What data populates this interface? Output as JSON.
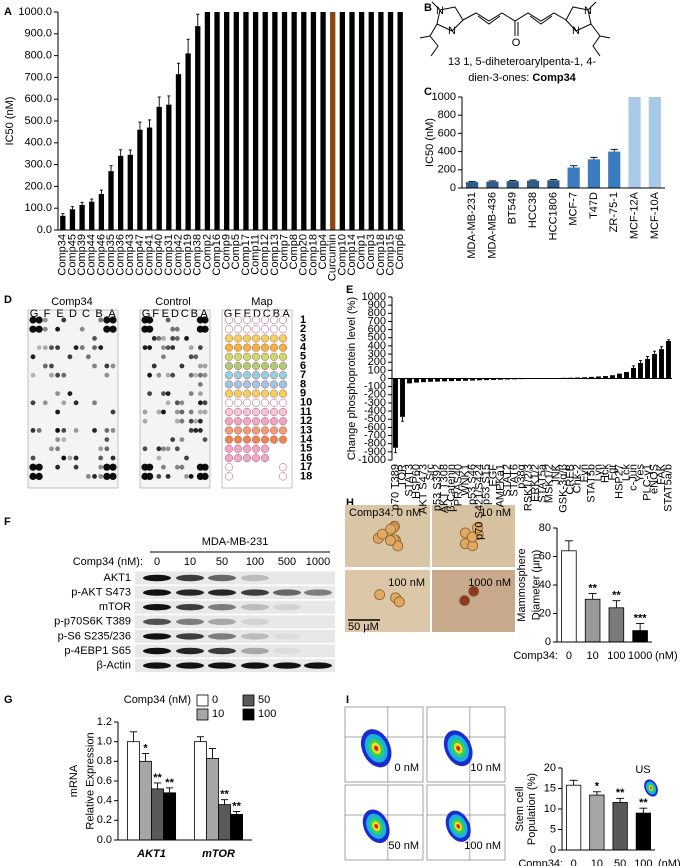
{
  "panel_labels": [
    "A",
    "B",
    "C",
    "D",
    "E",
    "F",
    "G",
    "H",
    "I"
  ],
  "structure": {
    "atoms": [
      "N",
      "N",
      "O",
      "N",
      "N"
    ],
    "caption": [
      "13 1, 5-diheteroarylpenta-1, 4-",
      "dien-3-ones: "
    ],
    "compound": "Comp34"
  },
  "array": {
    "titles": [
      "Comp34",
      "Control",
      "Map"
    ],
    "columns": [
      "G",
      "F",
      "E",
      "D",
      "C",
      "B",
      "A"
    ],
    "rows": [
      "1",
      "2",
      "3",
      "4",
      "5",
      "6",
      "7",
      "8",
      "9",
      "10",
      "11",
      "12",
      "13",
      "14",
      "15",
      "16",
      "17",
      "18"
    ]
  },
  "blot": {
    "cell_line": "MDA-MB-231",
    "dose_label": "Comp34 (nM):",
    "doses": [
      "0",
      "10",
      "50",
      "100",
      "500",
      "1000"
    ],
    "proteins": [
      "AKT1",
      "p-AKT S473",
      "mTOR",
      "p-p70S6K T389",
      "p-S6 S235/236",
      "p-4EBP1 S65",
      "β-Actin"
    ]
  },
  "micrographs": {
    "labels": [
      "Comp34: 0 nM",
      "10 nM",
      "100 nM",
      "1000 nM"
    ],
    "scale": "50 µM"
  },
  "flow": {
    "labels": [
      "0 nM",
      "10 nM",
      "50 nM",
      "100 nM"
    ]
  },
  "chart_data": [
    {
      "type": "bar",
      "ylabel": "IC50 (nM)",
      "categories": [
        "Comp34",
        "Comp45",
        "Comp39",
        "Comp44",
        "Comp46",
        "Comp35",
        "Comp36",
        "Comp43",
        "Comp47",
        "Comp41",
        "Comp40",
        "Comp31",
        "Comp42",
        "Comp19",
        "Comp38",
        "Comp2",
        "Comp16",
        "Comp9",
        "Comp5",
        "Comp17",
        "Comp11",
        "Comp12",
        "Comp13",
        "Comp7",
        "Comp8",
        "Comp20",
        "Comp18",
        "Comp4",
        "Curcumin",
        "Comp10",
        "Comp14",
        "Comp1",
        "Comp3",
        "Comp18",
        "Comp15",
        "Comp6"
      ],
      "values": [
        65,
        95,
        115,
        130,
        165,
        270,
        340,
        345,
        460,
        470,
        565,
        575,
        715,
        810,
        935,
        1000,
        1000,
        1000,
        1000,
        1000,
        1000,
        1000,
        1000,
        1000,
        1000,
        1000,
        1000,
        1000,
        1000,
        1000,
        1000,
        1000,
        1000,
        1000,
        1000,
        1000
      ],
      "errors": [
        10,
        12,
        12,
        12,
        18,
        25,
        28,
        22,
        35,
        35,
        45,
        40,
        50,
        65,
        55,
        null,
        null,
        null,
        null,
        null,
        null,
        null,
        null,
        null,
        null,
        null,
        null,
        null,
        null,
        null,
        null,
        null,
        null,
        null,
        null,
        null
      ],
      "colors": [
        "#000000",
        "#000000",
        "#000000",
        "#000000",
        "#000000",
        "#000000",
        "#000000",
        "#000000",
        "#000000",
        "#000000",
        "#000000",
        "#000000",
        "#000000",
        "#000000",
        "#000000",
        "#000000",
        "#000000",
        "#000000",
        "#000000",
        "#000000",
        "#000000",
        "#000000",
        "#000000",
        "#000000",
        "#000000",
        "#000000",
        "#000000",
        "#000000",
        "#8b4513",
        "#000000",
        "#000000",
        "#000000",
        "#000000",
        "#000000",
        "#000000",
        "#000000"
      ],
      "ylim": [
        0,
        1000
      ],
      "yticks": [
        {
          "value": 0,
          "label": "0.0"
        },
        {
          "value": 100,
          "label": "100.0"
        },
        {
          "value": 200,
          "label": "200.0"
        },
        {
          "value": 300,
          "label": "300.0"
        },
        {
          "value": 400,
          "label": "400.0"
        },
        {
          "value": 500,
          "label": "500.0"
        },
        {
          "value": 600,
          "label": "600.0"
        },
        {
          "value": 700,
          "label": "700.0"
        },
        {
          "value": 800,
          "label": "800.0"
        },
        {
          "value": 900,
          "label": "900.0"
        },
        {
          "value": 1000,
          "label": "1000.0"
        }
      ]
    },
    {
      "type": "bar",
      "ylabel": "IC50 (nM)",
      "categories": [
        "MDA-MB-231",
        "MDA-MB-436",
        "BT549",
        "HCC38",
        "HCC1806",
        "MCF-7",
        "T47D",
        "ZR-75-1",
        "MCF-12A",
        "MCF-10A"
      ],
      "values": [
        65,
        70,
        75,
        80,
        85,
        225,
        315,
        400,
        1000,
        1000
      ],
      "errors": [
        8,
        8,
        8,
        8,
        8,
        20,
        22,
        25,
        null,
        null
      ],
      "colors": [
        "#2b5c8a",
        "#2b5c8a",
        "#2b5c8a",
        "#2b5c8a",
        "#2b5c8a",
        "#3b7bbf",
        "#3b7bbf",
        "#3b7bbf",
        "#a9c9e9",
        "#a9c9e9"
      ],
      "ylim": [
        0,
        1000
      ],
      "yticks": [
        0,
        200,
        400,
        600,
        800,
        1000
      ]
    },
    {
      "type": "bar",
      "ylabel": "Change phosphoprotein level (%)",
      "categories": [
        "p70 T389",
        "TOR",
        "STAT3",
        "HSP60",
        "AKT S473",
        "Src",
        "p53 S392",
        "AKT T308",
        "β-Catenin",
        "PRAS40",
        "WNK1",
        "p53 S46",
        "p70 S421/S424",
        "p53 S15",
        "EGF",
        "AMPKa1",
        "STAT2",
        "STAT6",
        "p38α",
        "RSK1/2/3",
        "ERK1/2",
        "STAT5a",
        "MSK1/2",
        "JNK",
        "GSK-3α/β",
        "CREB",
        "Chk-2",
        "Fyn",
        "STAT5b",
        "Lyn",
        "Hck",
        "Fgr",
        "HSP27",
        "Lck",
        "c-Jun",
        "Yes",
        "PLC-γ1",
        "eNOS",
        "FAK",
        "STAT5a/b"
      ],
      "values": [
        -850,
        -470,
        -60,
        -50,
        -45,
        -40,
        -38,
        -35,
        -32,
        -30,
        -28,
        -25,
        -22,
        -20,
        -18,
        -15,
        -12,
        -10,
        -8,
        -5,
        -3,
        0,
        3,
        5,
        8,
        10,
        12,
        15,
        20,
        25,
        30,
        40,
        60,
        80,
        130,
        190,
        240,
        300,
        360,
        460
      ],
      "errors": [
        60,
        55,
        null,
        null,
        null,
        null,
        null,
        null,
        null,
        null,
        null,
        null,
        null,
        null,
        null,
        null,
        null,
        null,
        null,
        null,
        null,
        null,
        null,
        null,
        null,
        null,
        null,
        null,
        null,
        null,
        null,
        null,
        null,
        null,
        25,
        30,
        30,
        35,
        30,
        15
      ],
      "color": "#000000",
      "ylim": [
        -1000,
        1000
      ],
      "yticks": [
        -1000,
        -900,
        -800,
        -700,
        -600,
        -500,
        -400,
        -300,
        -200,
        -100,
        0,
        100,
        200,
        300,
        400,
        500,
        600,
        700,
        800,
        900,
        1000
      ]
    },
    {
      "type": "bar",
      "ylabel": [
        "mRNA",
        "Relative Expression"
      ],
      "legend_title": "Comp34 (nM)",
      "categories": [
        "AKT1",
        "mTOR"
      ],
      "series": [
        {
          "name": "0",
          "color": "#ffffff",
          "values": [
            1.0,
            1.0
          ],
          "errors": [
            0.1,
            0.05
          ],
          "significance": [
            null,
            null
          ]
        },
        {
          "name": "10",
          "color": "#a6a6a6",
          "values": [
            0.8,
            0.83
          ],
          "errors": [
            0.08,
            0.1
          ],
          "significance": [
            "*",
            null
          ]
        },
        {
          "name": "50",
          "color": "#595959",
          "values": [
            0.52,
            0.36
          ],
          "errors": [
            0.06,
            0.05
          ],
          "significance": [
            "**",
            "**"
          ]
        },
        {
          "name": "100",
          "color": "#000000",
          "values": [
            0.48,
            0.26
          ],
          "errors": [
            0.05,
            0.03
          ],
          "significance": [
            "**",
            "**"
          ]
        }
      ],
      "ylim": [
        0,
        1.2
      ],
      "yticks": [
        {
          "value": 0,
          "label": "0.0"
        },
        0.2,
        0.4,
        0.6,
        0.8,
        {
          "value": 1,
          "label": "1.0"
        },
        1.2
      ]
    },
    {
      "type": "bar",
      "ylabel": [
        "Mammosphere",
        "Diameter (µm)"
      ],
      "xlabel": "Comp34:",
      "x_unit": "(nM)",
      "categories": [
        "0",
        "10",
        "100",
        "1000"
      ],
      "values": [
        64,
        30,
        24,
        8
      ],
      "errors": [
        7,
        4,
        5,
        5
      ],
      "significance": [
        null,
        "**",
        "**",
        "***"
      ],
      "colors": [
        "#ffffff",
        "#999999",
        "#7a7a7a",
        "#000000"
      ],
      "ylim": [
        0,
        80
      ],
      "yticks": [
        0,
        20,
        40,
        60,
        80
      ]
    },
    {
      "type": "bar",
      "ylabel": [
        "Stem cell",
        "Population (%)"
      ],
      "xlabel": "Comp34:",
      "x_unit": "(nM)",
      "inset_label": "US",
      "categories": [
        "0",
        "10",
        "50",
        "100"
      ],
      "values": [
        15.8,
        13.4,
        11.6,
        9.0
      ],
      "errors": [
        1.2,
        0.8,
        1.0,
        1.2
      ],
      "significance": [
        null,
        "*",
        "**",
        "**"
      ],
      "colors": [
        "#ffffff",
        "#a6a6a6",
        "#595959",
        "#000000"
      ],
      "ylim": [
        0,
        20
      ],
      "yticks": [
        0,
        5,
        10,
        15,
        20
      ]
    }
  ]
}
